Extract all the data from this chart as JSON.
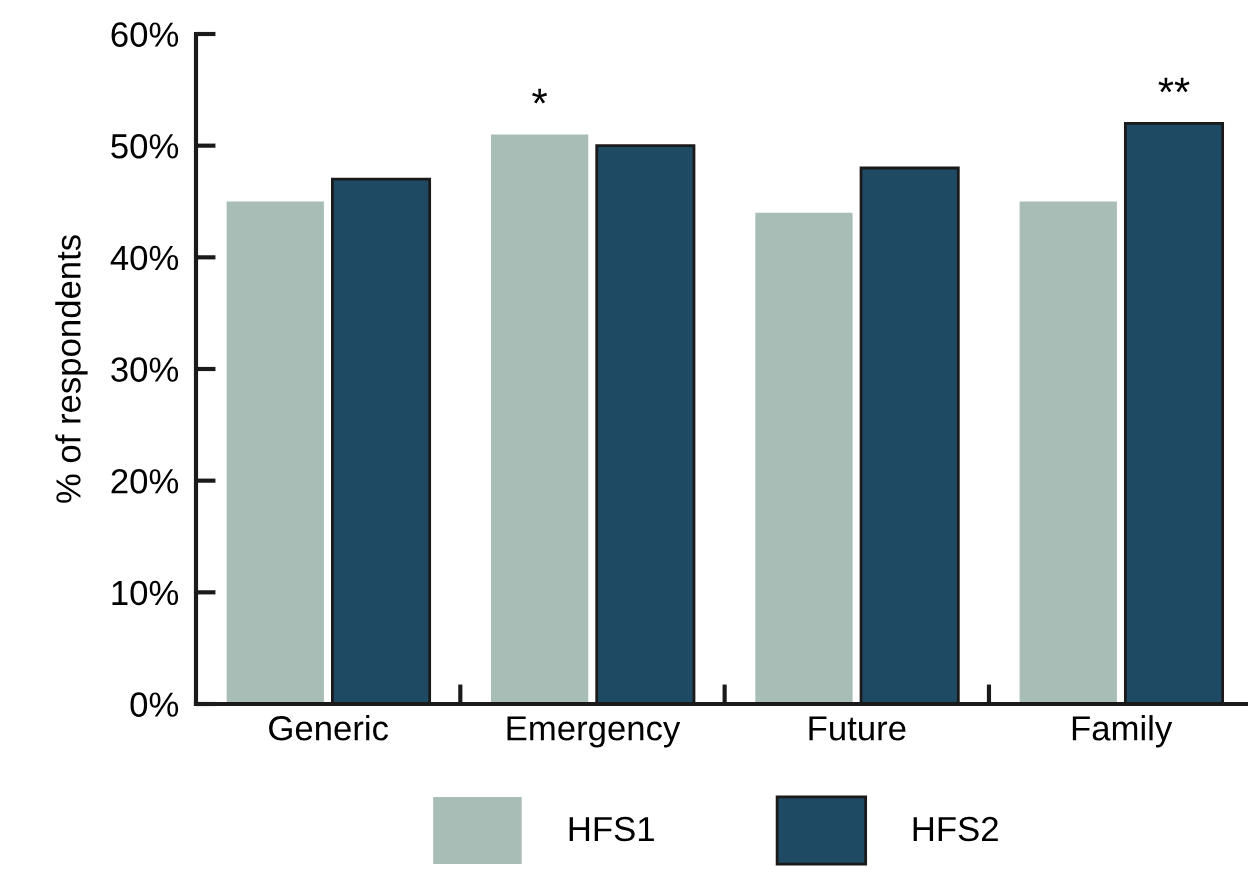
{
  "chart_data": {
    "type": "bar",
    "ylabel": "% of respondents",
    "categories": [
      "Generic",
      "Emergency",
      "Future",
      "Family"
    ],
    "series": [
      {
        "name": "HFS1",
        "color": "#a7bdb5",
        "values": [
          45,
          51,
          44,
          45
        ]
      },
      {
        "name": "HFS2",
        "color": "#1f4a63",
        "values": [
          47,
          50,
          48,
          52
        ]
      }
    ],
    "ylim": [
      0,
      60
    ],
    "yticks": [
      {
        "value": 0,
        "label": "0%"
      },
      {
        "value": 10,
        "label": "10%"
      },
      {
        "value": 20,
        "label": "20%"
      },
      {
        "value": 30,
        "label": "30%"
      },
      {
        "value": 40,
        "label": "40%"
      },
      {
        "value": 50,
        "label": "50%"
      },
      {
        "value": 60,
        "label": "60%"
      }
    ],
    "annotations": [
      {
        "text": "*",
        "x": "Emergency",
        "y": 51
      },
      {
        "text": "**",
        "x": "Family",
        "y": 52
      }
    ],
    "grid": false,
    "legend": "bottom"
  }
}
